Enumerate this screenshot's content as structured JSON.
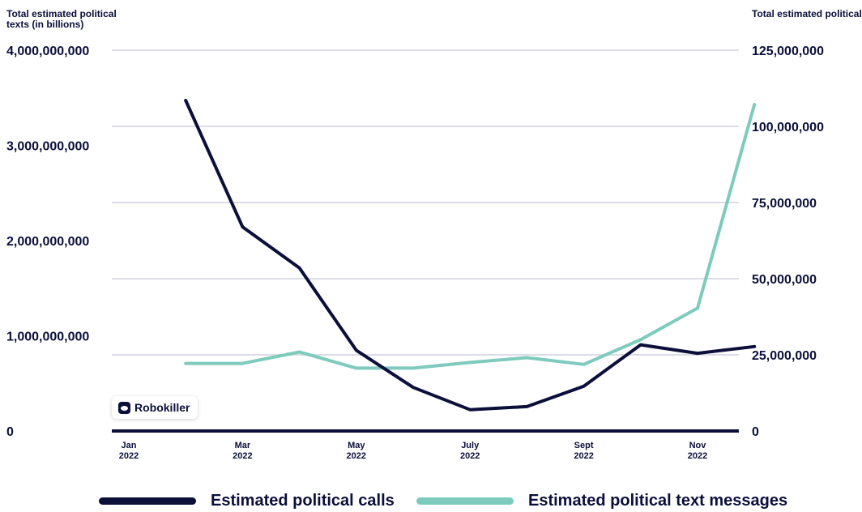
{
  "chart_data": {
    "type": "line",
    "left_axis": {
      "title": "Total estimated political texts (in billions)",
      "ticks": [
        "0",
        "1,000,000,000",
        "2,000,000,000",
        "3,000,000,000",
        "4,000,000,000"
      ],
      "ylim": [
        0,
        4000000000
      ]
    },
    "right_axis": {
      "title": "Total estimated political calls (in millions)",
      "ticks": [
        "0",
        "25,000,000",
        "50,000,000",
        "75,000,000",
        "100,000,000",
        "125,000,000"
      ],
      "ylim": [
        0,
        125000000
      ]
    },
    "x_tick_labels": [
      [
        "Jan",
        "2022"
      ],
      [
        "Mar",
        "2022"
      ],
      [
        "May",
        "2022"
      ],
      [
        "July",
        "2022"
      ],
      [
        "Sept",
        "2022"
      ],
      [
        "Nov",
        "2022"
      ]
    ],
    "x_months": [
      "2022-01",
      "2022-02",
      "2022-03",
      "2022-04",
      "2022-05",
      "2022-06",
      "2022-07",
      "2022-08",
      "2022-09",
      "2022-10",
      "2022-11",
      "2022-12"
    ],
    "series": [
      {
        "name": "Estimated political calls",
        "axis": "right",
        "color": "#0b0f3a",
        "x": [
          "2022-02",
          "2022-03",
          "2022-04",
          "2022-05",
          "2022-06",
          "2022-07",
          "2022-08",
          "2022-09",
          "2022-10",
          "2022-11",
          "2022-12"
        ],
        "values": [
          108500000,
          67000000,
          53500000,
          26500000,
          14300000,
          7000000,
          8000000,
          14700000,
          28300000,
          25500000,
          27700000
        ]
      },
      {
        "name": "Estimated political text messages",
        "axis": "left",
        "color": "#7ecbbd",
        "x": [
          "2022-02",
          "2022-03",
          "2022-04",
          "2022-05",
          "2022-06",
          "2022-07",
          "2022-08",
          "2022-09",
          "2022-10",
          "2022-11",
          "2022-12"
        ],
        "values": [
          710000000,
          710000000,
          830000000,
          660000000,
          660000000,
          720000000,
          770000000,
          700000000,
          960000000,
          1290000000,
          3430000000
        ]
      }
    ],
    "grid": true,
    "legend_position": "bottom"
  },
  "brand": {
    "name": "Robokiller"
  }
}
